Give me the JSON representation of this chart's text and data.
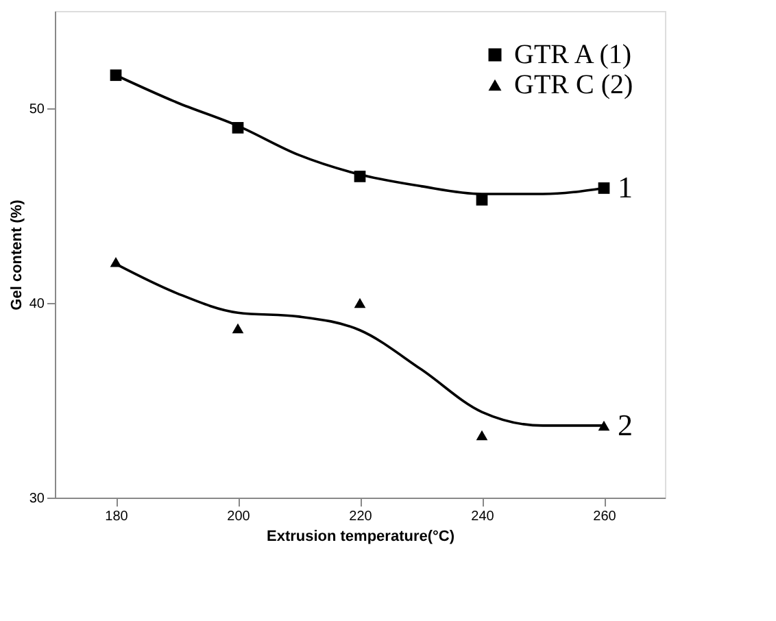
{
  "chart_data": {
    "type": "scatter",
    "xlabel": "Extrusion temperature(°C)",
    "ylabel": "Gel content (%)",
    "x": [
      180,
      200,
      220,
      240,
      260
    ],
    "series": [
      {
        "name": "GTR A (1)",
        "color": "#000000",
        "marker": "square",
        "values": [
          51.7,
          49.0,
          46.5,
          45.3,
          45.9
        ]
      },
      {
        "name": "GTR C (2)",
        "color": "#000000",
        "marker": "triangle",
        "values": [
          42.1,
          38.7,
          40.0,
          33.2,
          33.7
        ]
      },
      {
        "type": "line",
        "color": "#000000",
        "marker": "none",
        "x": [
          180,
          190,
          200,
          210,
          220,
          230,
          240,
          250,
          260
        ],
        "values": [
          51.7,
          50.3,
          49.1,
          47.6,
          46.6,
          46.0,
          45.6,
          45.6,
          45.9
        ]
      },
      {
        "type": "line",
        "color": "#000000",
        "marker": "none",
        "x": [
          180,
          190,
          200,
          210,
          220,
          230,
          240,
          250,
          260
        ],
        "values": [
          42.0,
          40.5,
          39.5,
          39.3,
          38.6,
          36.6,
          34.4,
          33.7,
          33.7
        ]
      }
    ],
    "annotations": [
      "1",
      "2"
    ],
    "xlim": [
      170,
      270
    ],
    "xticks": [
      180,
      200,
      220,
      240,
      260
    ],
    "ylim": [
      30,
      55
    ],
    "yticks": [
      30,
      40,
      50
    ],
    "grid": false,
    "legend": "top right"
  }
}
